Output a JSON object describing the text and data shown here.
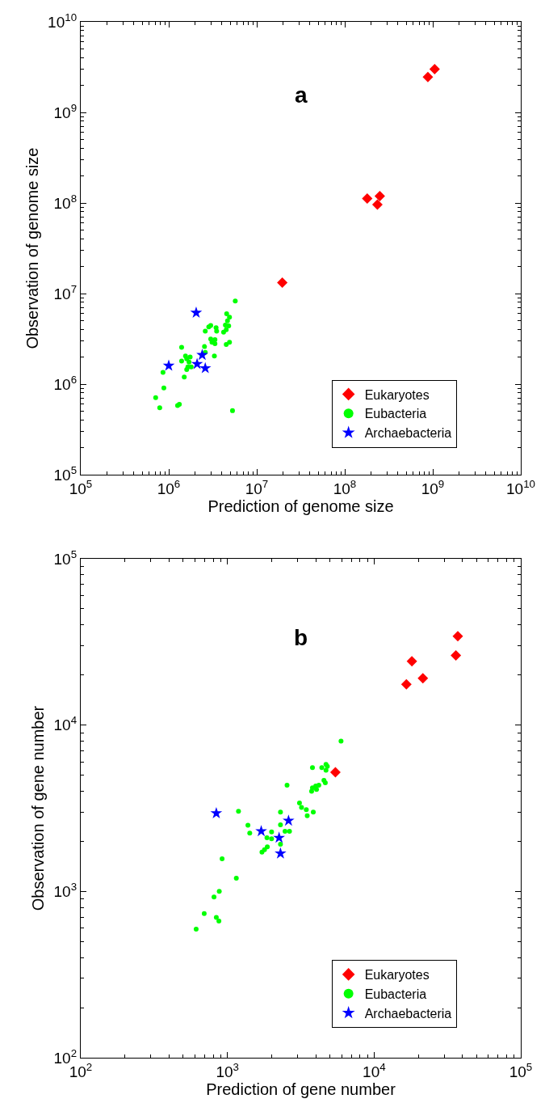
{
  "chart_data": [
    {
      "type": "scatter",
      "title": "a",
      "xlabel": "Prediction of genome size",
      "ylabel": "Observation of genome size",
      "log": "xy",
      "legend": "bottom right",
      "xlim": [
        100000,
        10000000000
      ],
      "ylim": [
        100000,
        10000000000
      ],
      "xticks": [
        {
          "value": 100000,
          "label": "10$^{5}$"
        },
        {
          "value": 1000000,
          "label": "10$^{6}$"
        },
        {
          "value": 10000000,
          "label": "10$^{7}$"
        },
        {
          "value": 100000000,
          "label": "10$^{8}$"
        },
        {
          "value": 1000000000,
          "label": "10$^{9}$"
        },
        {
          "value": 10000000000,
          "label": "10$^{10}$"
        }
      ],
      "yticks": [
        {
          "value": 100000,
          "label": "10$^{5}$"
        },
        {
          "value": 1000000,
          "label": "10$^{6}$"
        },
        {
          "value": 10000000,
          "label": "10$^{7}$"
        },
        {
          "value": 100000000,
          "label": "10$^{8}$"
        },
        {
          "value": 1000000000,
          "label": "10$^{9}$"
        },
        {
          "value": 10000000000,
          "label": "10$^{10}$"
        }
      ],
      "series": [
        {
          "name": "Eukaryotes",
          "color": "#ff0000",
          "marker": "diamond",
          "x": [
            19500000,
            180000000,
            235000000,
            250000000,
            880000000,
            1050000000
          ],
          "values": [
            13200000,
            112000000,
            96000000,
            119000000,
            2460000000,
            3000000000
          ]
        },
        {
          "name": "Eubacteria",
          "color": "#00ff00",
          "marker": "circle",
          "x": [
            5700000,
            4550000,
            4900000,
            4650000,
            4400000,
            4800000,
            2850000,
            3000000,
            3450000,
            4500000,
            3500000,
            4200000,
            2600000,
            3000000,
            3350000,
            3100000,
            3350000,
            4900000,
            4500000,
            1400000,
            2550000,
            2600000,
            3300000,
            1550000,
            1750000,
            1600000,
            1400000,
            1700000,
            1800000,
            1650000,
            1600000,
            860000,
            1500000,
            880000,
            710000,
            790000,
            1260000,
            1320000,
            5300000
          ],
          "values": [
            8300000,
            6000000,
            5500000,
            5000000,
            4500000,
            4400000,
            4300000,
            4450000,
            4200000,
            4000000,
            3850000,
            3750000,
            3850000,
            3150000,
            3100000,
            2900000,
            2800000,
            2900000,
            2750000,
            2550000,
            2600000,
            2250000,
            2050000,
            2050000,
            2000000,
            1900000,
            1800000,
            1750000,
            1550000,
            1550000,
            1450000,
            1350000,
            1200000,
            910000,
            710000,
            550000,
            580000,
            600000,
            510000
          ]
        },
        {
          "name": "Archaebacteria",
          "color": "#0000ff",
          "marker": "star",
          "x": [
            2050000,
            2400000,
            2100000,
            2600000,
            1000000
          ],
          "values": [
            6150000,
            2100000,
            1670000,
            1500000,
            1600000
          ]
        }
      ]
    },
    {
      "type": "scatter",
      "title": "b",
      "xlabel": "Prediction of gene number",
      "ylabel": "Observation of gene number",
      "log": "xy",
      "legend": "bottom right",
      "xlim": [
        100,
        100000
      ],
      "ylim": [
        100,
        100000
      ],
      "xticks": [
        {
          "value": 100,
          "label": "10$^{2}$"
        },
        {
          "value": 1000,
          "label": "10$^{3}$"
        },
        {
          "value": 10000,
          "label": "10$^{4}$"
        },
        {
          "value": 100000,
          "label": "10$^{5}$"
        }
      ],
      "yticks": [
        {
          "value": 100,
          "label": "10$^{2}$"
        },
        {
          "value": 1000,
          "label": "10$^{3}$"
        },
        {
          "value": 10000,
          "label": "10$^{4}$"
        },
        {
          "value": 100000,
          "label": "10$^{5}$"
        }
      ],
      "series": [
        {
          "name": "Eukaryotes",
          "color": "#ff0000",
          "marker": "diamond",
          "x": [
            5450,
            16600,
            18100,
            21500,
            37200,
            36100
          ],
          "values": [
            5200,
            17600,
            24200,
            19100,
            34200,
            26200
          ]
        },
        {
          "name": "Eubacteria",
          "color": "#00ff00",
          "marker": "circle",
          "x": [
            5950,
            3800,
            4400,
            4700,
            4800,
            4700,
            4550,
            4650,
            4200,
            4000,
            3800,
            4050,
            3750,
            2550,
            3100,
            3200,
            3450,
            3850,
            3500,
            2300,
            1190,
            1380,
            1420,
            920,
            1150,
            880,
            810,
            695,
            840,
            875,
            612,
            2300,
            2000,
            2000,
            1860,
            2470,
            2650,
            2300,
            1870,
            1790,
            1720
          ],
          "values": [
            8000,
            5550,
            5550,
            5800,
            5650,
            5350,
            4650,
            4500,
            4350,
            4300,
            4200,
            4100,
            4000,
            4350,
            3400,
            3200,
            3100,
            3000,
            2850,
            3000,
            3030,
            2500,
            2240,
            1570,
            1200,
            1000,
            925,
            736,
            697,
            663,
            593,
            2510,
            2280,
            2070,
            2100,
            2300,
            2300,
            1920,
            1850,
            1780,
            1720
          ]
        },
        {
          "name": "Archaebacteria",
          "color": "#0000ff",
          "marker": "star",
          "x": [
            840,
            2610,
            1700,
            2250,
            2300
          ],
          "values": [
            2950,
            2660,
            2300,
            2100,
            1690
          ]
        }
      ]
    }
  ]
}
